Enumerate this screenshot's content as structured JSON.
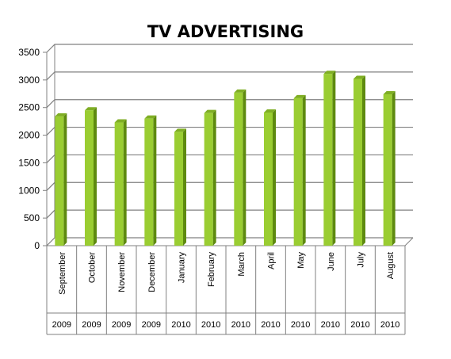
{
  "chart_data": {
    "type": "bar",
    "title": "TV ADVERTISING",
    "xlabel": "",
    "ylabel": "",
    "ylim": [
      0,
      3500
    ],
    "yticks": [
      0,
      500,
      1000,
      1500,
      2000,
      2500,
      3000,
      3500
    ],
    "grid": true,
    "legend": "none",
    "categories": [
      "September",
      "October",
      "November",
      "December",
      "January",
      "February",
      "March",
      "April",
      "May",
      "June",
      "July",
      "August"
    ],
    "years": [
      "2009",
      "2009",
      "2009",
      "2009",
      "2010",
      "2010",
      "2010",
      "2010",
      "2010",
      "2010",
      "2010",
      "2010"
    ],
    "values": [
      2340,
      2450,
      2230,
      2300,
      2060,
      2400,
      2770,
      2410,
      2670,
      3110,
      3020,
      2740
    ],
    "colors": {
      "bar_front": "#9ACD32",
      "bar_side": "#5E8A10",
      "bar_top": "#7FAE24",
      "grid": "#808080"
    }
  }
}
